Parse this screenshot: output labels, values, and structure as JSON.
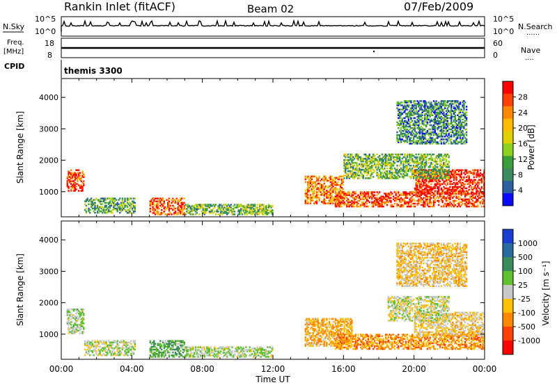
{
  "header": {
    "station": "Rankin Inlet (fitACF)",
    "beam": "Beam 02",
    "date": "07/Feb/2009"
  },
  "sky_panel": {
    "left_label": "N.Sky",
    "right_label": "N.Search",
    "right_legend": "......",
    "tick_top": "10^5",
    "tick_bottom": "10^0"
  },
  "freq_panel": {
    "label_line1": "Freq.",
    "label_line2": "[MHz]",
    "tick_top": "18",
    "tick_bottom": "8",
    "right_label": "Nave",
    "right_legend": "....",
    "right_tick_top": "60",
    "right_tick_bottom": "0"
  },
  "cpid_panel": {
    "label": "CPID",
    "value": "themis 3300"
  },
  "colorbar_power": {
    "title": "Power [dB]",
    "ticks": [
      "28",
      "24",
      "20",
      "16",
      "12",
      "8",
      "4"
    ],
    "colors": [
      "#ff0000",
      "#ff4000",
      "#ff8800",
      "#ffbb00",
      "#e0d000",
      "#8ed020",
      "#3a9e3a",
      "#3b8a60",
      "#2a5fa0",
      "#0a0aff"
    ]
  },
  "colorbar_velocity": {
    "title": "Velocity [m s⁻¹]",
    "ticks": [
      "1000",
      "500",
      "100",
      "25",
      "-25",
      "-100",
      "-500",
      "-1000"
    ],
    "colors": [
      "#1a3fd0",
      "#2b6aa0",
      "#3d8a5a",
      "#5fc030",
      "#c8c8c8",
      "#ffc000",
      "#ff8800",
      "#ff4000",
      "#ff0000"
    ]
  },
  "axes": {
    "ylabel": "Slant Range [km]",
    "xlabel": "Time UT",
    "xticks": [
      "00:00",
      "04:00",
      "08:00",
      "12:00",
      "16:00",
      "20:00",
      "00:00"
    ],
    "yticks": [
      "1000",
      "2000",
      "3000",
      "4000"
    ]
  },
  "chart_data": [
    {
      "type": "heatmap",
      "title": "Power",
      "xlabel": "Time UT",
      "ylabel": "Slant Range [km]",
      "xlim": [
        0,
        24
      ],
      "ylim": [
        200,
        4600
      ],
      "colorbar": "Power [dB]",
      "clim": [
        0,
        30
      ],
      "regions": [
        {
          "t0": 0.3,
          "t1": 1.3,
          "r0": 1000,
          "r1": 1700,
          "value": 26
        },
        {
          "t0": 1.3,
          "t1": 4.2,
          "r0": 300,
          "r1": 800,
          "value": 10
        },
        {
          "t0": 5.0,
          "t1": 7.0,
          "r0": 250,
          "r1": 800,
          "value": 25
        },
        {
          "t0": 7.0,
          "t1": 12.0,
          "r0": 250,
          "r1": 600,
          "value": 12
        },
        {
          "t0": 13.8,
          "t1": 16.0,
          "r0": 600,
          "r1": 1500,
          "value": 22
        },
        {
          "t0": 15.5,
          "t1": 24.0,
          "r0": 500,
          "r1": 1000,
          "value": 26
        },
        {
          "t0": 20.0,
          "t1": 24.0,
          "r0": 900,
          "r1": 1700,
          "value": 28
        },
        {
          "t0": 16.0,
          "t1": 22.0,
          "r0": 1400,
          "r1": 2200,
          "value": 12
        },
        {
          "t0": 19.0,
          "t1": 23.0,
          "r0": 2500,
          "r1": 3900,
          "value": 8
        }
      ]
    },
    {
      "type": "heatmap",
      "title": "Velocity",
      "xlabel": "Time UT",
      "ylabel": "Slant Range [km]",
      "xlim": [
        0,
        24
      ],
      "ylim": [
        200,
        4600
      ],
      "colorbar": "Velocity [m s-1]",
      "clim": [
        -1000,
        1000
      ],
      "regions": [
        {
          "t0": 0.3,
          "t1": 1.3,
          "r0": 1000,
          "r1": 1800,
          "value": 100
        },
        {
          "t0": 1.3,
          "t1": 4.2,
          "r0": 300,
          "r1": 800,
          "value": 50
        },
        {
          "t0": 5.0,
          "t1": 7.0,
          "r0": 250,
          "r1": 800,
          "value": 300
        },
        {
          "t0": 7.0,
          "t1": 12.0,
          "r0": 250,
          "r1": 600,
          "value": 80
        },
        {
          "t0": 13.8,
          "t1": 16.5,
          "r0": 600,
          "r1": 1500,
          "value": -300
        },
        {
          "t0": 15.5,
          "t1": 24.0,
          "r0": 500,
          "r1": 1000,
          "value": -400
        },
        {
          "t0": 20.0,
          "t1": 24.0,
          "r0": 900,
          "r1": 1700,
          "value": -150
        },
        {
          "t0": 18.5,
          "t1": 22.0,
          "r0": 1400,
          "r1": 2200,
          "value": 0
        },
        {
          "t0": 19.0,
          "t1": 23.0,
          "r0": 2500,
          "r1": 3900,
          "value": -200
        }
      ]
    }
  ]
}
